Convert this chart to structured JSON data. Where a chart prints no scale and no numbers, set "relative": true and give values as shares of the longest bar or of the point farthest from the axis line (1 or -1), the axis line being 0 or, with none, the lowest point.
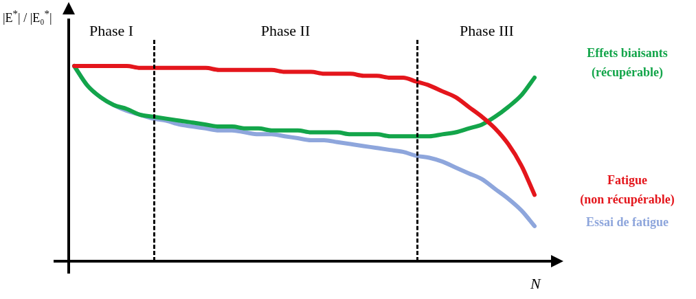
{
  "chart_data": {
    "type": "line",
    "relative": true,
    "ylabel": "|E$^{*}$| / |E₀$^{*}$|",
    "xlabel": "N",
    "categories": [
      null,
      null,
      null,
      null,
      null,
      null,
      null,
      null,
      null,
      null,
      null,
      null,
      null,
      null,
      null,
      null,
      null,
      null,
      null,
      null,
      null,
      null,
      null,
      null,
      null,
      null,
      null,
      null,
      null,
      null,
      null,
      null,
      null,
      null,
      null,
      null
    ],
    "series": [
      {
        "name": "Fatigue\n(non récupérable)",
        "color": "#e4161c",
        "values": [
          1,
          1,
          1,
          1,
          1,
          0.99,
          0.99,
          0.99,
          0.99,
          0.99,
          0.99,
          0.98,
          0.98,
          0.98,
          0.98,
          0.98,
          0.97,
          0.97,
          0.97,
          0.96,
          0.96,
          0.96,
          0.95,
          0.95,
          0.94,
          0.94,
          0.92,
          0.9,
          0.87,
          0.84,
          0.79,
          0.74,
          0.68,
          0.6,
          0.49,
          0.34
        ]
      },
      {
        "name": "Effets biaisants\n(récupérable)",
        "color": "#13a54a",
        "values": [
          1,
          0.9,
          0.84,
          0.8,
          0.78,
          0.75,
          0.74,
          0.73,
          0.72,
          0.71,
          0.7,
          0.69,
          0.69,
          0.68,
          0.68,
          0.67,
          0.67,
          0.67,
          0.66,
          0.66,
          0.66,
          0.65,
          0.65,
          0.65,
          0.64,
          0.64,
          0.64,
          0.64,
          0.65,
          0.66,
          0.68,
          0.7,
          0.74,
          0.79,
          0.85,
          0.94
        ]
      },
      {
        "name": "Essai de fatigue",
        "color": "#8ea6dc",
        "values": [
          1,
          0.9,
          0.84,
          0.8,
          0.77,
          0.75,
          0.73,
          0.72,
          0.7,
          0.69,
          0.68,
          0.67,
          0.67,
          0.66,
          0.65,
          0.65,
          0.64,
          0.63,
          0.62,
          0.62,
          0.61,
          0.6,
          0.59,
          0.58,
          0.57,
          0.56,
          0.54,
          0.53,
          0.51,
          0.48,
          0.45,
          0.42,
          0.37,
          0.32,
          0.26,
          0.18
        ]
      }
    ],
    "annotations": [
      "Phase I",
      "Phase II",
      "Phase III"
    ],
    "legend": false,
    "marker": "none",
    "line_style": "solid"
  }
}
